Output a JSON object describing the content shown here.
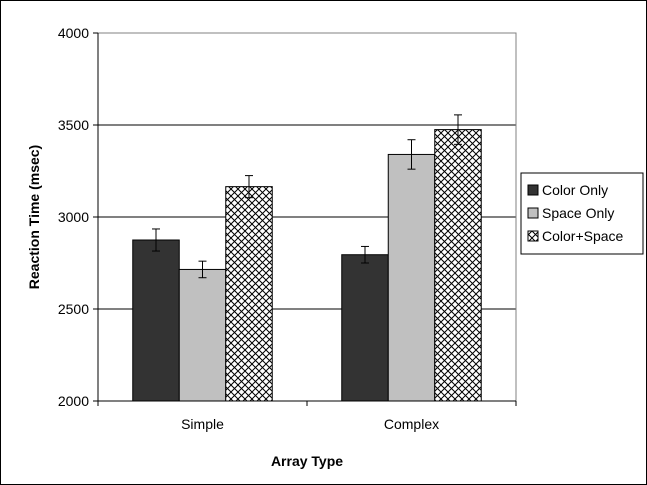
{
  "chart_data": {
    "type": "bar",
    "xlabel": "Array Type",
    "ylabel": "Reaction Time (msec)",
    "categories": [
      "Simple",
      "Complex"
    ],
    "ylim": [
      2000,
      4000
    ],
    "yticks": [
      2000,
      2500,
      3000,
      3500,
      4000
    ],
    "grid": true,
    "legend_position": "right",
    "series": [
      {
        "name": "Color Only",
        "values": [
          2875,
          2795
        ],
        "errors": [
          60,
          45
        ],
        "color": "#333333",
        "pattern": "solid"
      },
      {
        "name": "Space Only",
        "values": [
          2715,
          3340
        ],
        "errors": [
          45,
          80
        ],
        "color": "#c0c0c0",
        "pattern": "solid"
      },
      {
        "name": "Color+Space",
        "values": [
          3165,
          3475
        ],
        "errors": [
          60,
          80
        ],
        "color": "#ffffff",
        "pattern": "crosshatch"
      }
    ]
  }
}
